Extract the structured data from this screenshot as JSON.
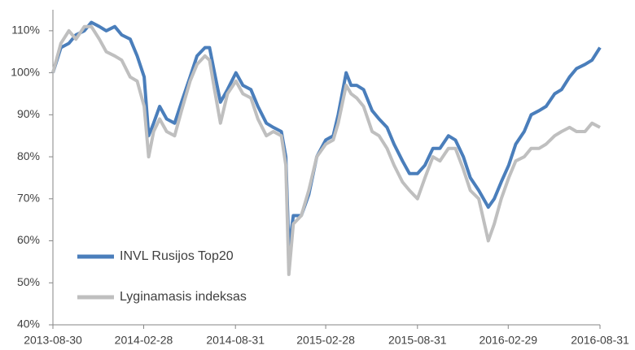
{
  "chart_data": {
    "type": "line",
    "x": [
      "2013-08-30",
      "2013-09-15",
      "2013-10-01",
      "2013-10-15",
      "2013-11-01",
      "2013-11-15",
      "2013-12-01",
      "2013-12-15",
      "2014-01-01",
      "2014-01-15",
      "2014-02-01",
      "2014-02-15",
      "2014-03-01",
      "2014-03-10",
      "2014-03-20",
      "2014-04-01",
      "2014-04-15",
      "2014-05-01",
      "2014-05-15",
      "2014-06-01",
      "2014-06-15",
      "2014-07-01",
      "2014-07-10",
      "2014-07-20",
      "2014-08-01",
      "2014-08-15",
      "2014-09-01",
      "2014-09-15",
      "2014-10-01",
      "2014-10-15",
      "2014-11-01",
      "2014-11-15",
      "2014-12-01",
      "2014-12-10",
      "2014-12-16",
      "2014-12-25",
      "2015-01-10",
      "2015-01-25",
      "2015-02-10",
      "2015-02-28",
      "2015-03-15",
      "2015-03-25",
      "2015-04-10",
      "2015-04-20",
      "2015-05-01",
      "2015-05-15",
      "2015-06-01",
      "2015-06-15",
      "2015-07-01",
      "2015-07-15",
      "2015-08-01",
      "2015-08-15",
      "2015-08-31",
      "2015-09-15",
      "2015-10-01",
      "2015-10-15",
      "2015-11-01",
      "2015-11-15",
      "2015-12-01",
      "2015-12-15",
      "2016-01-01",
      "2016-01-20",
      "2016-02-01",
      "2016-02-15",
      "2016-03-01",
      "2016-03-15",
      "2016-04-01",
      "2016-04-15",
      "2016-05-01",
      "2016-05-15",
      "2016-06-01",
      "2016-06-15",
      "2016-07-01",
      "2016-07-15",
      "2016-08-01",
      "2016-08-15",
      "2016-08-31"
    ],
    "series": [
      {
        "name": "INVL Rusijos Top20",
        "color": "#4a7ebb",
        "values": [
          100,
          106,
          107,
          109,
          110,
          112,
          111,
          110,
          111,
          109,
          108,
          104,
          99,
          85,
          88,
          92,
          89,
          88,
          93,
          99,
          104,
          106,
          106,
          100,
          93,
          96,
          100,
          97,
          96,
          92,
          88,
          87,
          86,
          80,
          58,
          66,
          66,
          71,
          80,
          84,
          85,
          90,
          100,
          97,
          97,
          96,
          91,
          89,
          87,
          83,
          79,
          76,
          76,
          78,
          82,
          82,
          85,
          84,
          80,
          75,
          72,
          68,
          70,
          74,
          78,
          83,
          86,
          90,
          91,
          92,
          95,
          96,
          99,
          101,
          102,
          103,
          106
        ]
      },
      {
        "name": "Lyginamasis indeksas",
        "color": "#bfbfbf",
        "values": [
          100,
          107,
          110,
          108,
          111,
          111,
          108,
          105,
          104,
          103,
          99,
          98,
          92,
          80,
          86,
          89,
          86,
          85,
          91,
          98,
          102,
          104,
          103,
          96,
          88,
          95,
          98,
          95,
          94,
          89,
          85,
          86,
          85,
          78,
          52,
          64,
          66,
          72,
          80,
          83,
          84,
          88,
          97,
          95,
          94,
          92,
          86,
          85,
          82,
          78,
          74,
          72,
          70,
          75,
          80,
          79,
          82,
          82,
          77,
          72,
          70,
          60,
          64,
          70,
          75,
          79,
          80,
          82,
          82,
          83,
          85,
          86,
          87,
          86,
          86,
          88,
          87
        ]
      }
    ],
    "xlim": [
      "2013-08-30",
      "2016-08-31"
    ],
    "xticks": [
      "2013-08-30",
      "2014-02-28",
      "2014-08-31",
      "2015-02-28",
      "2015-08-31",
      "2016-02-29",
      "2016-08-31"
    ],
    "ylim": [
      40,
      115
    ],
    "yticks": [
      {
        "value": 40,
        "label": "40%"
      },
      {
        "value": 50,
        "label": "50%"
      },
      {
        "value": 60,
        "label": "60%"
      },
      {
        "value": 70,
        "label": "70%"
      },
      {
        "value": 80,
        "label": "80%"
      },
      {
        "value": 90,
        "label": "90%"
      },
      {
        "value": 100,
        "label": "100%"
      },
      {
        "value": 110,
        "label": "110%"
      }
    ],
    "grid": false
  }
}
